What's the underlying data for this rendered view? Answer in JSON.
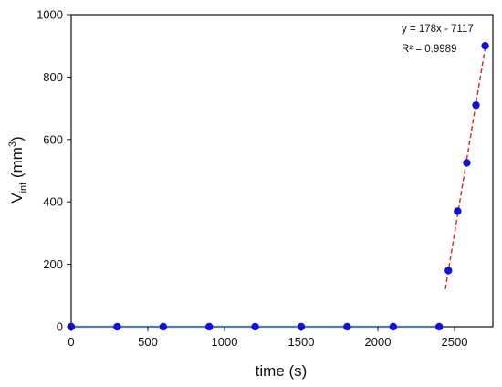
{
  "chart_data": {
    "type": "scatter",
    "xlabel": "time (s)",
    "ylabel": {
      "main": "V",
      "sub": "inf",
      "unit_open": " (mm",
      "unit_sup": "3",
      "unit_close": ")"
    },
    "xlim": [
      0,
      2750
    ],
    "ylim": [
      0,
      1000
    ],
    "x_ticks": [
      0,
      500,
      1000,
      1500,
      2000,
      2500
    ],
    "y_ticks": [
      0,
      200,
      400,
      600,
      800,
      1000
    ],
    "grid": false,
    "series": [
      {
        "color": "#1010e0",
        "points": [
          [
            0,
            0
          ],
          [
            300,
            0
          ],
          [
            600,
            0
          ],
          [
            900,
            0
          ],
          [
            1200,
            0
          ],
          [
            1500,
            0
          ],
          [
            1800,
            0
          ],
          [
            2100,
            0
          ],
          [
            2400,
            0
          ],
          [
            2460,
            180
          ],
          [
            2520,
            370
          ],
          [
            2580,
            525
          ],
          [
            2640,
            710
          ],
          [
            2700,
            900
          ]
        ]
      }
    ],
    "baseline": {
      "x": [
        0,
        2400
      ],
      "y": 0,
      "color": "#5577bb"
    },
    "trendline": {
      "x": [
        2440,
        2700
      ],
      "slope": 178,
      "intercept": -7117,
      "color": "#dd2222"
    },
    "annotations": [
      "y = 178x - 7117",
      "R² = 0.9989"
    ]
  }
}
